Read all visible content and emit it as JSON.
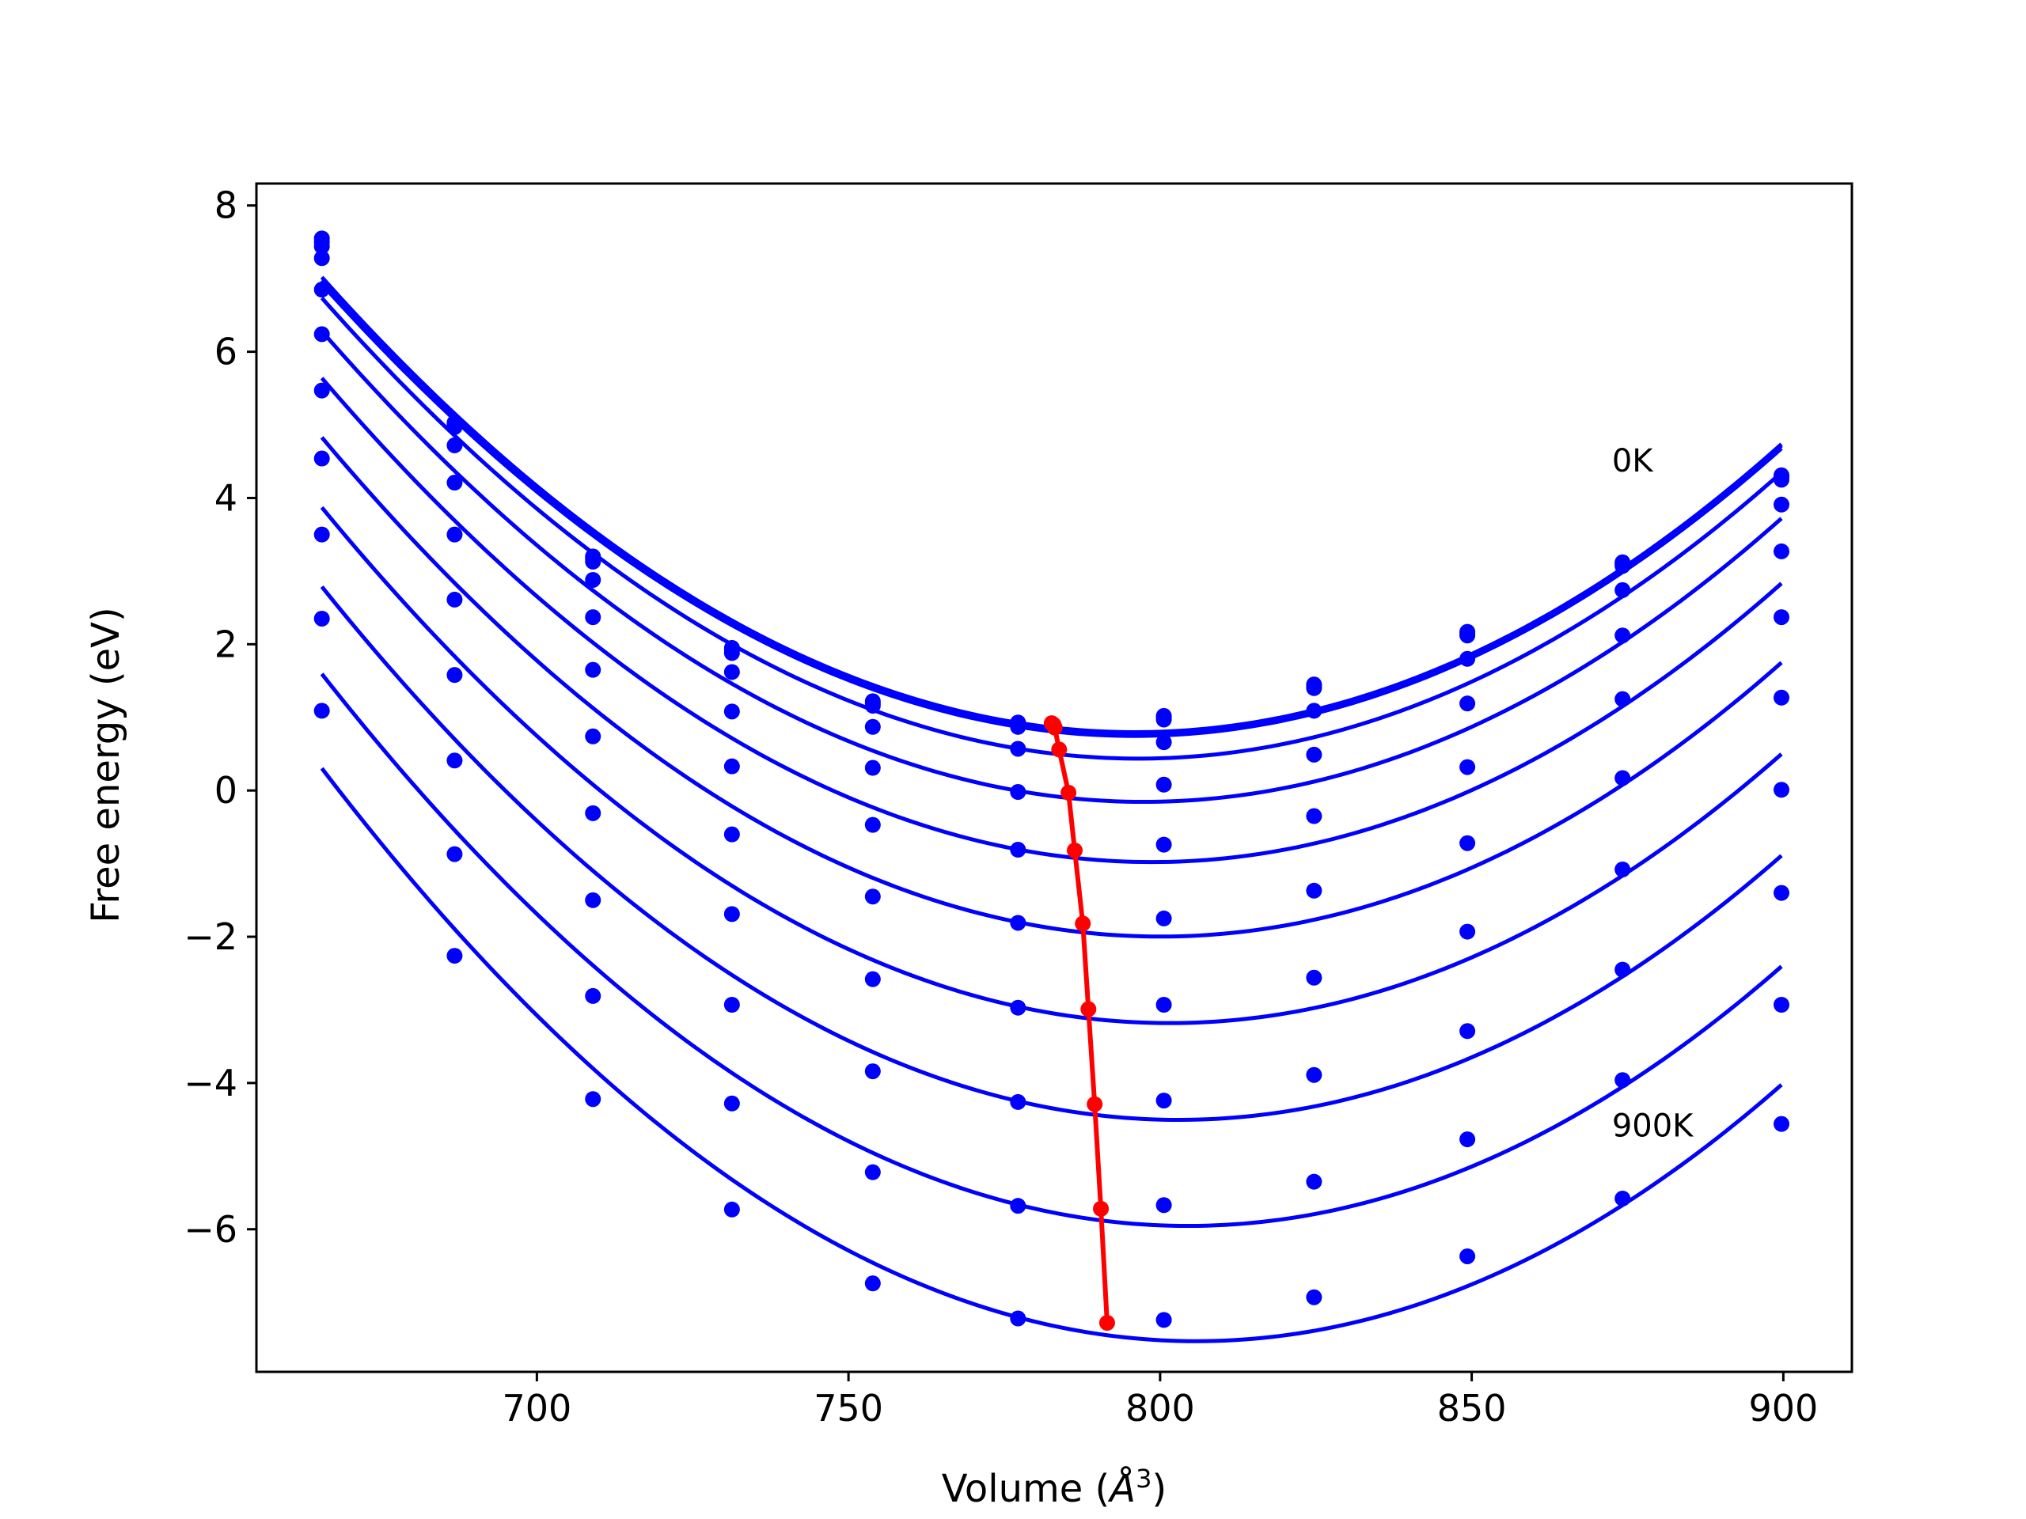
{
  "chart_data": {
    "type": "line",
    "title": "",
    "xlabel": "Volume (",
    "xlabel_symbol": "Å",
    "xlabel_exponent": "3",
    "xlabel_close": ")",
    "ylabel": "Free energy (eV)",
    "xlim": [
      655,
      911
    ],
    "ylim": [
      -7.95,
      8.3
    ],
    "xticks": [
      700,
      750,
      800,
      850,
      900
    ],
    "xtick_labels": [
      "700",
      "750",
      "800",
      "850",
      "900"
    ],
    "yticks": [
      -6,
      -4,
      -2,
      0,
      2,
      4,
      6,
      8
    ],
    "ytick_labels": [
      "−6",
      "−4",
      "−2",
      "0",
      "2",
      "4",
      "6",
      "8"
    ],
    "grid": false,
    "x": [
      665.5,
      686.8,
      709.0,
      731.3,
      753.9,
      777.2,
      800.6,
      824.7,
      849.3,
      874.2,
      899.7
    ],
    "series": [
      {
        "values": [
          7.55,
          5.03,
          3.2,
          1.95,
          1.22,
          0.93,
          1.02,
          1.45,
          2.17,
          3.12,
          4.31
        ]
      },
      {
        "values": [
          7.5,
          5.0,
          3.17,
          1.92,
          1.19,
          0.9,
          1.0,
          1.43,
          2.15,
          3.1,
          4.29
        ]
      },
      {
        "values": [
          7.44,
          4.97,
          3.13,
          1.88,
          1.16,
          0.87,
          0.97,
          1.4,
          2.12,
          3.07,
          4.25
        ]
      },
      {
        "values": [
          7.28,
          4.72,
          2.88,
          1.62,
          0.87,
          0.57,
          0.66,
          1.09,
          1.8,
          2.74,
          3.91
        ]
      },
      {
        "values": [
          6.85,
          4.21,
          2.37,
          1.08,
          0.31,
          -0.02,
          0.08,
          0.49,
          1.19,
          2.12,
          3.27
        ]
      },
      {
        "values": [
          6.24,
          3.5,
          1.65,
          0.33,
          -0.47,
          -0.81,
          -0.74,
          -0.35,
          0.32,
          1.25,
          2.37
        ]
      },
      {
        "values": [
          5.47,
          2.61,
          0.74,
          -0.6,
          -1.45,
          -1.81,
          -1.75,
          -1.37,
          -0.72,
          0.17,
          1.27
        ]
      },
      {
        "values": [
          4.54,
          1.58,
          -0.31,
          -1.69,
          -2.58,
          -2.97,
          -2.93,
          -2.56,
          -1.93,
          -1.08,
          0.01
        ]
      },
      {
        "values": [
          3.5,
          0.41,
          -1.5,
          -2.93,
          -3.84,
          -4.26,
          -4.24,
          -3.89,
          -3.29,
          -2.45,
          -1.4
        ]
      },
      {
        "values": [
          2.35,
          -0.87,
          -2.81,
          -4.28,
          -5.22,
          -5.68,
          -5.67,
          -5.35,
          -4.77,
          -3.96,
          -2.93
        ]
      },
      {
        "values": [
          1.09,
          -2.26,
          -4.22,
          -5.73,
          -6.74,
          -7.22,
          -7.24,
          -6.93,
          -6.37,
          -5.58,
          -4.56
        ]
      }
    ],
    "minima_line": {
      "color": "#ff0000",
      "x": [
        782.6,
        782.9,
        783.1,
        783.8,
        785.3,
        786.3,
        787.6,
        788.5,
        789.5,
        790.5,
        791.5
      ],
      "y": [
        0.92,
        0.9,
        0.86,
        0.56,
        -0.03,
        -0.82,
        -1.82,
        -2.99,
        -4.29,
        -5.72,
        -7.28
      ]
    },
    "curve_color": "#0000ff",
    "annotations": [
      {
        "text": "0K",
        "x": 872.5,
        "y": 4.36
      },
      {
        "text": "900K",
        "x": 872.5,
        "y": -4.73
      }
    ]
  }
}
